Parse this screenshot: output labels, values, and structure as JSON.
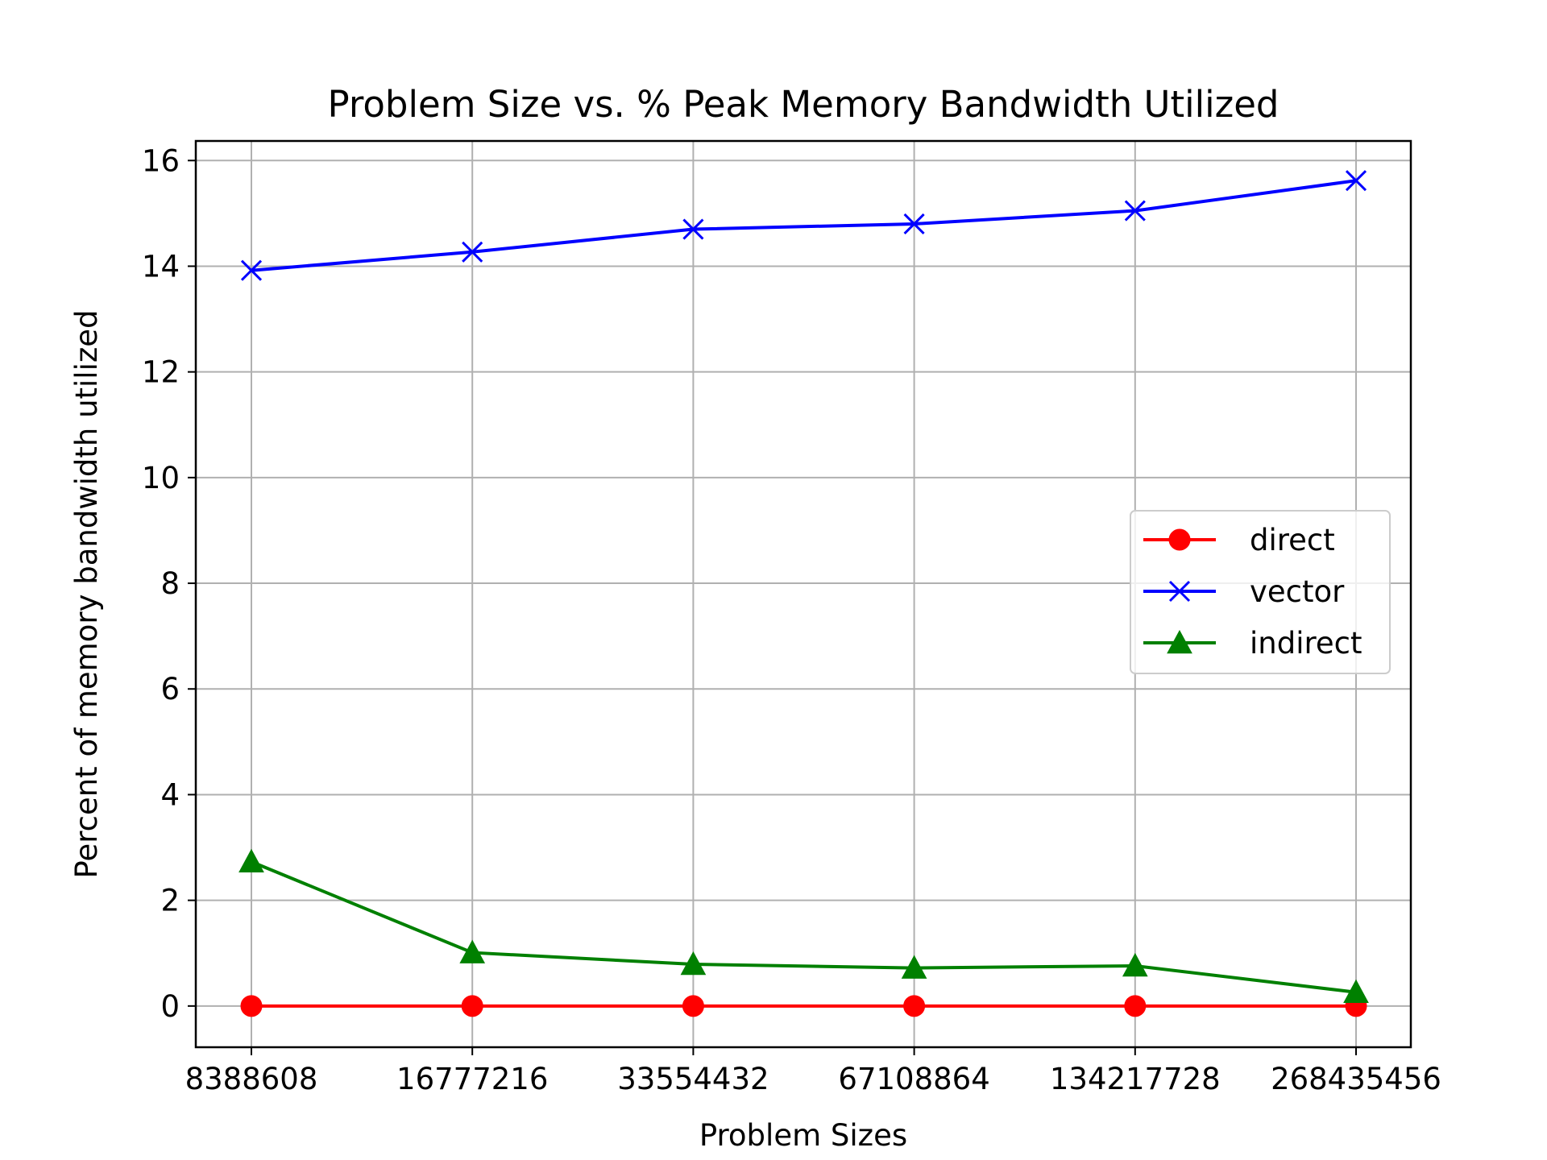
{
  "chart_data": {
    "type": "line",
    "title": "Problem Size vs. % Peak Memory Bandwidth Utilized",
    "xlabel": "Problem Sizes",
    "ylabel": "Percent of memory bandwidth utilized",
    "categories": [
      "8388608",
      "16777216",
      "33554432",
      "67108864",
      "134217728",
      "268435456"
    ],
    "series": [
      {
        "name": "direct",
        "color": "#ff0000",
        "marker": "circle",
        "values": [
          0.0,
          0.0,
          0.0,
          0.0,
          0.0,
          0.0
        ]
      },
      {
        "name": "vector",
        "color": "#0000ff",
        "marker": "x",
        "values": [
          13.92,
          14.27,
          14.7,
          14.8,
          15.05,
          15.62
        ]
      },
      {
        "name": "indirect",
        "color": "#008000",
        "marker": "triangle",
        "values": [
          2.73,
          1.01,
          0.79,
          0.72,
          0.76,
          0.26
        ]
      }
    ],
    "ylim": [
      -0.78,
      16.37
    ],
    "yticks": [
      0,
      2,
      4,
      6,
      8,
      10,
      12,
      14,
      16
    ],
    "grid": true,
    "legend_position": "center-right"
  }
}
